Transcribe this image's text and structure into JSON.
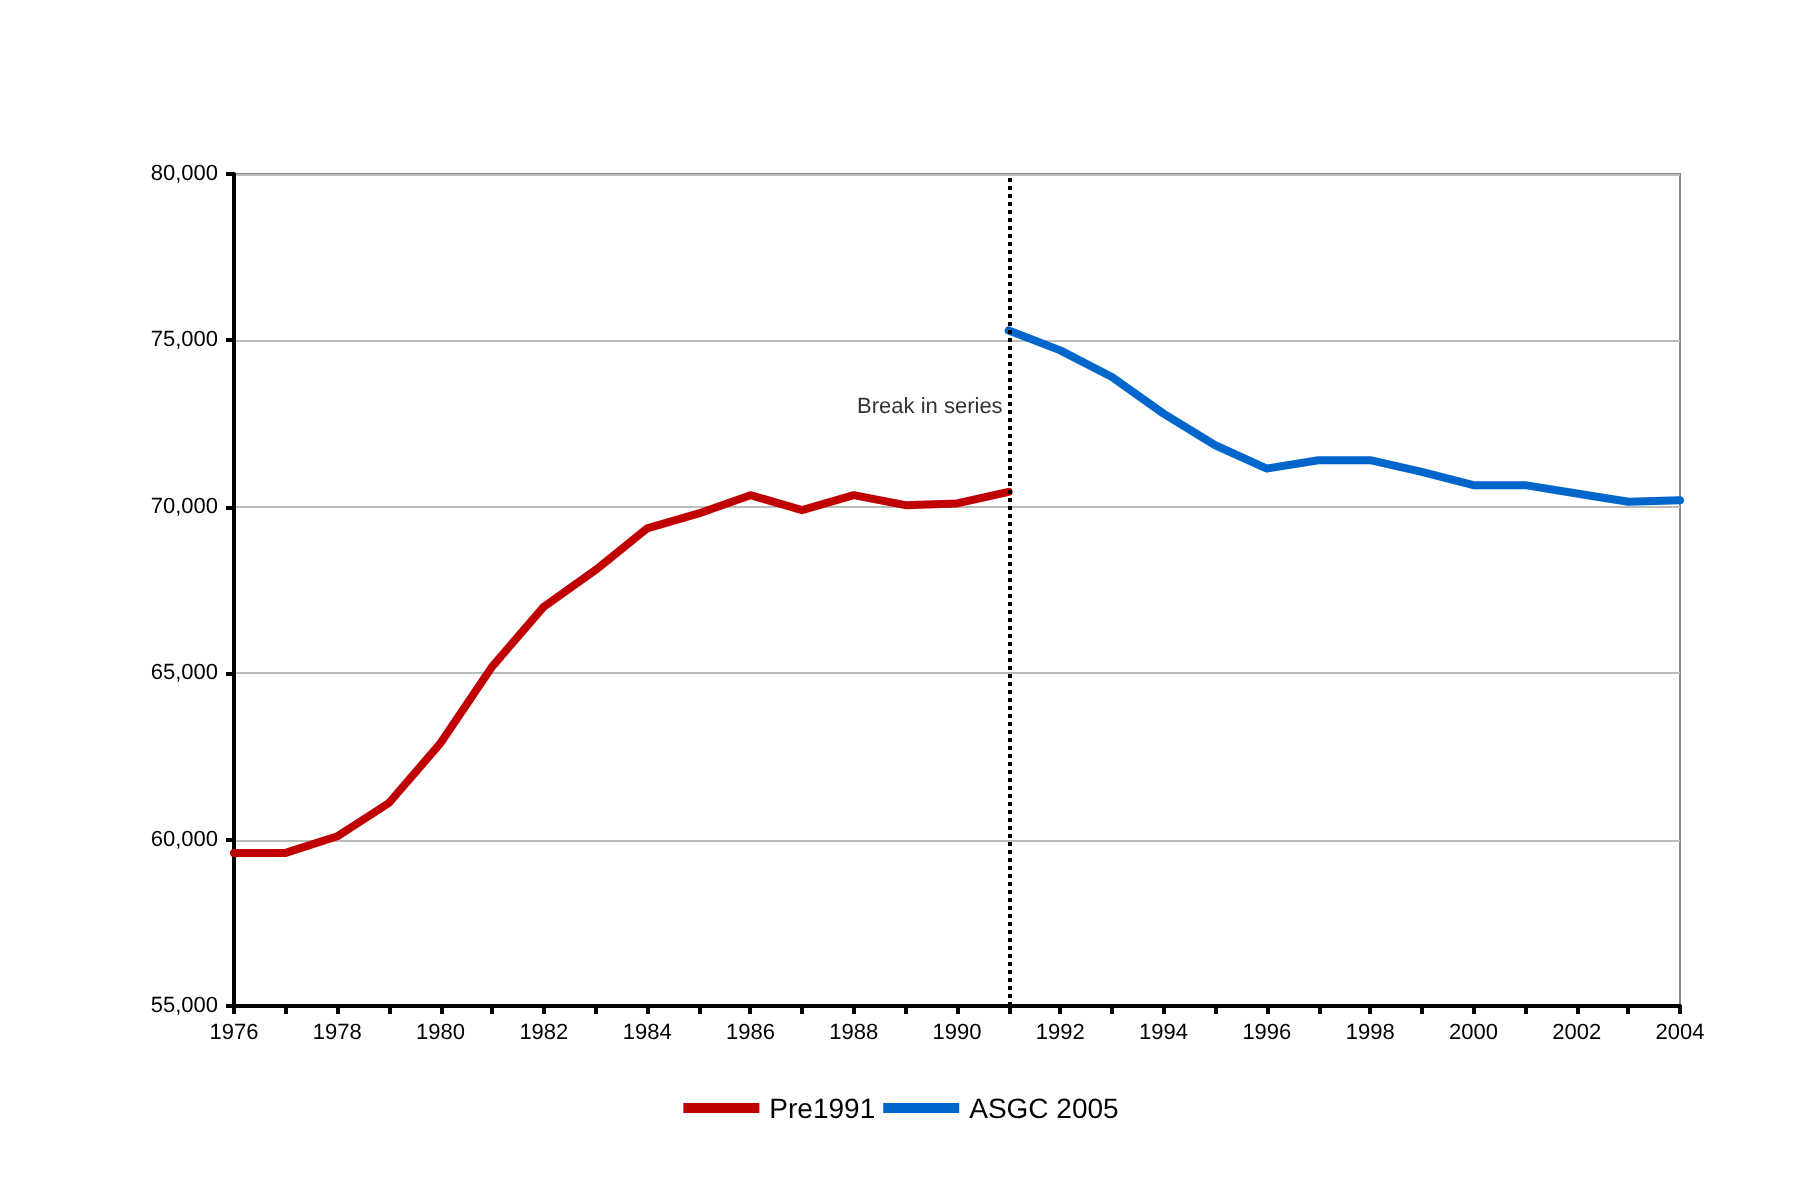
{
  "chart_data": {
    "type": "line",
    "x": [
      1976,
      1977,
      1978,
      1979,
      1980,
      1981,
      1982,
      1983,
      1984,
      1985,
      1986,
      1987,
      1988,
      1989,
      1990,
      1991
    ],
    "series": [
      {
        "name": "Pre1991",
        "color": "#c00000",
        "values": [
          59600,
          59600,
          60100,
          61100,
          62900,
          65200,
          67000,
          68100,
          69350,
          69800,
          70350,
          69900,
          70350,
          70050,
          70100,
          70450
        ]
      },
      {
        "name": "ASGC 2005",
        "color": "#0066cc",
        "x": [
          1991,
          1992,
          1993,
          1994,
          1995,
          1996,
          1997,
          1998,
          1999,
          2000,
          2001,
          2002,
          2003,
          2004
        ],
        "values": [
          75300,
          74700,
          73900,
          72800,
          71850,
          71150,
          71400,
          71400,
          71050,
          70650,
          70650,
          70400,
          70150,
          70200
        ]
      }
    ],
    "xlim": [
      1976,
      2004
    ],
    "xticks": [
      1976,
      {
        "value": 1977,
        "label": null
      },
      1978,
      {
        "value": 1979,
        "label": null
      },
      1980,
      {
        "value": 1981,
        "label": null
      },
      1982,
      {
        "value": 1983,
        "label": null
      },
      1984,
      {
        "value": 1985,
        "label": null
      },
      1986,
      {
        "value": 1987,
        "label": null
      },
      1988,
      {
        "value": 1989,
        "label": null
      },
      1990,
      {
        "value": 1991,
        "label": null
      },
      1992,
      {
        "value": 1993,
        "label": null
      },
      1994,
      {
        "value": 1995,
        "label": null
      },
      1996,
      {
        "value": 1997,
        "label": null
      },
      1998,
      {
        "value": 1999,
        "label": null
      },
      2000,
      {
        "value": 2001,
        "label": null
      },
      2002,
      {
        "value": 2003,
        "label": null
      },
      2004
    ],
    "ylim": [
      55000,
      80000
    ],
    "yticks": [
      {
        "value": 55000,
        "label": "55,000"
      },
      {
        "value": 60000,
        "label": "60,000"
      },
      {
        "value": 65000,
        "label": "65,000"
      },
      {
        "value": 70000,
        "label": "70,000"
      },
      {
        "value": 75000,
        "label": "75,000"
      },
      {
        "value": 80000,
        "label": "80,000"
      }
    ],
    "ref_lines": [
      {
        "axis": "x",
        "value": 1991,
        "label": "Break in series",
        "color": "#000000",
        "line_style": "dotted"
      }
    ],
    "grid": "y",
    "legend": "bottom",
    "marker": "none",
    "line_style": "solid"
  }
}
